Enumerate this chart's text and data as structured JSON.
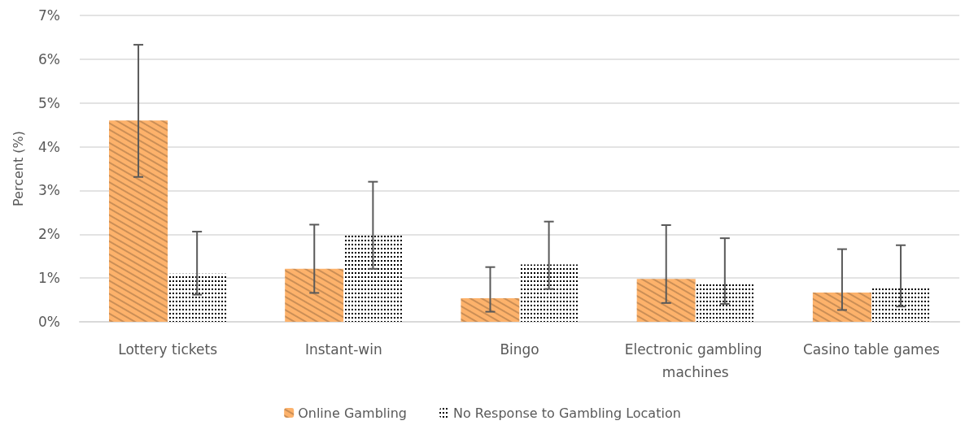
{
  "chart_data": {
    "type": "bar",
    "ylabel": "Percent (%)",
    "categories": [
      "Lottery tickets",
      "Instant-win",
      "Bingo",
      "Electronic gambling machines",
      "Casino table games"
    ],
    "series": [
      {
        "name": "Online Gambling",
        "color": "#fdb26b",
        "values": [
          4.6,
          1.21,
          0.54,
          0.98,
          0.67
        ],
        "errors": [
          [
            3.31,
            6.33
          ],
          [
            0.66,
            2.22
          ],
          [
            0.23,
            1.25
          ],
          [
            0.43,
            2.21
          ],
          [
            0.27,
            1.66
          ]
        ]
      },
      {
        "name": "No Response to Gambling Location",
        "color": "#000000",
        "values": [
          1.1,
          1.97,
          1.31,
          0.89,
          0.78
        ],
        "errors": [
          [
            0.62,
            2.06
          ],
          [
            1.21,
            3.2
          ],
          [
            0.75,
            2.29
          ],
          [
            0.41,
            1.91
          ],
          [
            0.35,
            1.75
          ]
        ]
      }
    ],
    "ylim": [
      0,
      7
    ],
    "yticks": [
      {
        "value": 0,
        "label": "0%"
      },
      {
        "value": 1,
        "label": "1%"
      },
      {
        "value": 2,
        "label": "2%"
      },
      {
        "value": 3,
        "label": "3%"
      },
      {
        "value": 4,
        "label": "4%"
      },
      {
        "value": 5,
        "label": "5%"
      },
      {
        "value": 6,
        "label": "6%"
      },
      {
        "value": 7,
        "label": "7%"
      }
    ],
    "grid": "y",
    "legend": "bottom"
  }
}
